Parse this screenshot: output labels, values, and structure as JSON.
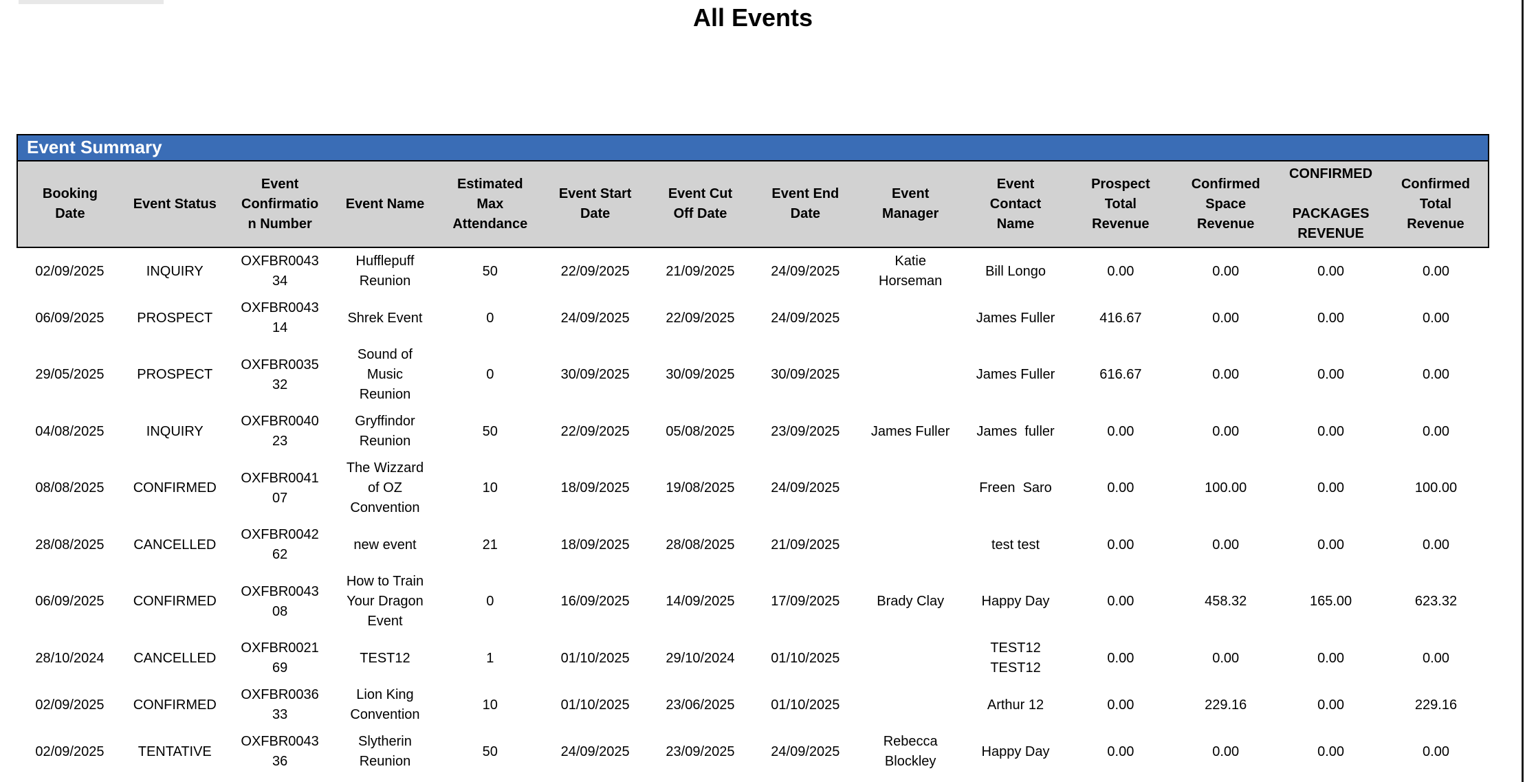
{
  "page": {
    "title": "All Events"
  },
  "colors": {
    "accent_blue": "#3a6db6",
    "header_gray": "#d2d2d2"
  },
  "summary": {
    "title": "Event Summary"
  },
  "table": {
    "columns": [
      {
        "key": "booking_date",
        "label": "Booking\nDate"
      },
      {
        "key": "event_status",
        "label": "Event Status"
      },
      {
        "key": "confirmation_number",
        "label": "Event\nConfirmatio\nn Number"
      },
      {
        "key": "event_name",
        "label": "Event Name"
      },
      {
        "key": "attendance",
        "label": "Estimated\nMax\nAttendance"
      },
      {
        "key": "start_date",
        "label": "Event Start\nDate"
      },
      {
        "key": "cutoff_date",
        "label": "Event Cut\nOff Date"
      },
      {
        "key": "end_date",
        "label": "Event End\nDate"
      },
      {
        "key": "manager",
        "label": "Event\nManager"
      },
      {
        "key": "contact",
        "label": "Event\nContact\nName"
      },
      {
        "key": "prospect_total",
        "label": "Prospect\nTotal\nRevenue"
      },
      {
        "key": "confirmed_space",
        "label": "Confirmed\nSpace\nRevenue"
      },
      {
        "key": "confirmed_packages",
        "label": "CONFIRMED\n\nPACKAGES\nREVENUE"
      },
      {
        "key": "confirmed_total",
        "label": "Confirmed\nTotal\nRevenue"
      }
    ],
    "rows": [
      {
        "booking_date": "02/09/2025",
        "event_status": "INQUIRY",
        "confirmation_number": "OXFBR0043\n34",
        "event_name": "Hufflepuff\nReunion",
        "attendance": "50",
        "start_date": "22/09/2025",
        "cutoff_date": "21/09/2025",
        "end_date": "24/09/2025",
        "manager": "Katie\nHorseman",
        "contact": "Bill Longo",
        "prospect_total": "0.00",
        "confirmed_space": "0.00",
        "confirmed_packages": "0.00",
        "confirmed_total": "0.00"
      },
      {
        "booking_date": "06/09/2025",
        "event_status": "PROSPECT",
        "confirmation_number": "OXFBR0043\n14",
        "event_name": "Shrek Event",
        "attendance": "0",
        "start_date": "24/09/2025",
        "cutoff_date": "22/09/2025",
        "end_date": "24/09/2025",
        "manager": "",
        "contact": "James Fuller",
        "prospect_total": "416.67",
        "confirmed_space": "0.00",
        "confirmed_packages": "0.00",
        "confirmed_total": "0.00"
      },
      {
        "booking_date": "29/05/2025",
        "event_status": "PROSPECT",
        "confirmation_number": "OXFBR0035\n32",
        "event_name": "Sound of\nMusic\nReunion",
        "attendance": "0",
        "start_date": "30/09/2025",
        "cutoff_date": "30/09/2025",
        "end_date": "30/09/2025",
        "manager": "",
        "contact": "James Fuller",
        "prospect_total": "616.67",
        "confirmed_space": "0.00",
        "confirmed_packages": "0.00",
        "confirmed_total": "0.00"
      },
      {
        "booking_date": "04/08/2025",
        "event_status": "INQUIRY",
        "confirmation_number": "OXFBR0040\n23",
        "event_name": "Gryffindor\nReunion",
        "attendance": "50",
        "start_date": "22/09/2025",
        "cutoff_date": "05/08/2025",
        "end_date": "23/09/2025",
        "manager": "James Fuller",
        "contact": "James  fuller",
        "prospect_total": "0.00",
        "confirmed_space": "0.00",
        "confirmed_packages": "0.00",
        "confirmed_total": "0.00"
      },
      {
        "booking_date": "08/08/2025",
        "event_status": "CONFIRMED",
        "confirmation_number": "OXFBR0041\n07",
        "event_name": "The Wizzard\nof OZ\nConvention",
        "attendance": "10",
        "start_date": "18/09/2025",
        "cutoff_date": "19/08/2025",
        "end_date": "24/09/2025",
        "manager": "",
        "contact": "Freen  Saro",
        "prospect_total": "0.00",
        "confirmed_space": "100.00",
        "confirmed_packages": "0.00",
        "confirmed_total": "100.00"
      },
      {
        "booking_date": "28/08/2025",
        "event_status": "CANCELLED",
        "confirmation_number": "OXFBR0042\n62",
        "event_name": "new event",
        "attendance": "21",
        "start_date": "18/09/2025",
        "cutoff_date": "28/08/2025",
        "end_date": "21/09/2025",
        "manager": "",
        "contact": "test test",
        "prospect_total": "0.00",
        "confirmed_space": "0.00",
        "confirmed_packages": "0.00",
        "confirmed_total": "0.00"
      },
      {
        "booking_date": "06/09/2025",
        "event_status": "CONFIRMED",
        "confirmation_number": "OXFBR0043\n08",
        "event_name": "How to Train\nYour Dragon\nEvent",
        "attendance": "0",
        "start_date": "16/09/2025",
        "cutoff_date": "14/09/2025",
        "end_date": "17/09/2025",
        "manager": "Brady Clay",
        "contact": "Happy Day",
        "prospect_total": "0.00",
        "confirmed_space": "458.32",
        "confirmed_packages": "165.00",
        "confirmed_total": "623.32"
      },
      {
        "booking_date": "28/10/2024",
        "event_status": "CANCELLED",
        "confirmation_number": "OXFBR0021\n69",
        "event_name": "TEST12",
        "attendance": "1",
        "start_date": "01/10/2025",
        "cutoff_date": "29/10/2024",
        "end_date": "01/10/2025",
        "manager": "",
        "contact": "TEST12\nTEST12",
        "prospect_total": "0.00",
        "confirmed_space": "0.00",
        "confirmed_packages": "0.00",
        "confirmed_total": "0.00"
      },
      {
        "booking_date": "02/09/2025",
        "event_status": "CONFIRMED",
        "confirmation_number": "OXFBR0036\n33",
        "event_name": "Lion King\nConvention",
        "attendance": "10",
        "start_date": "01/10/2025",
        "cutoff_date": "23/06/2025",
        "end_date": "01/10/2025",
        "manager": "",
        "contact": "Arthur 12",
        "prospect_total": "0.00",
        "confirmed_space": "229.16",
        "confirmed_packages": "0.00",
        "confirmed_total": "229.16"
      },
      {
        "booking_date": "02/09/2025",
        "event_status": "TENTATIVE",
        "confirmation_number": "OXFBR0043\n36",
        "event_name": "Slytherin\nReunion",
        "attendance": "50",
        "start_date": "24/09/2025",
        "cutoff_date": "23/09/2025",
        "end_date": "24/09/2025",
        "manager": "Rebecca\nBlockley",
        "contact": "Happy Day",
        "prospect_total": "0.00",
        "confirmed_space": "0.00",
        "confirmed_packages": "0.00",
        "confirmed_total": "0.00"
      }
    ]
  }
}
